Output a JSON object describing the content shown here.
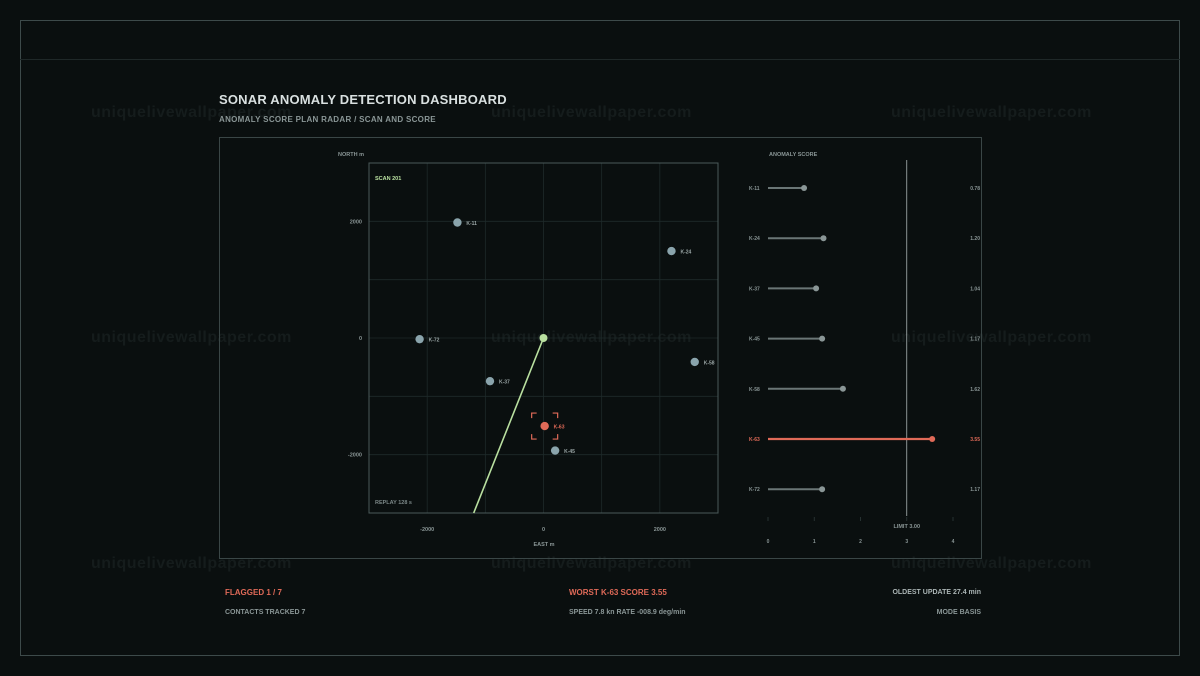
{
  "header": {
    "title": "SONAR ANOMALY DETECTION DASHBOARD",
    "subtitle": "ANOMALY SCORE PLAN RADAR / SCAN AND SCORE"
  },
  "watermark": "uniquelivewallpaper.com",
  "radar": {
    "ylabel": "NORTH m",
    "xlabel": "EAST m",
    "scan_label": "SCAN 201",
    "replay_label": "REPLAY 128 s",
    "x_ticks": [
      "-2000",
      "0",
      "2000"
    ],
    "y_ticks": [
      "2000",
      "0",
      "-2000"
    ],
    "xlim": [
      -3000,
      3000
    ],
    "ylim": [
      -3000,
      3000
    ],
    "heading_line": {
      "from": [
        0,
        0
      ],
      "to": [
        -1200,
        -3000
      ]
    },
    "contacts": [
      {
        "id": "K-11",
        "x": -1480,
        "y": 1980,
        "flagged": false
      },
      {
        "id": "K-24",
        "x": 2200,
        "y": 1490,
        "flagged": false
      },
      {
        "id": "K-72",
        "x": -2130,
        "y": -20,
        "flagged": false
      },
      {
        "id": "K-37",
        "x": -920,
        "y": -740,
        "flagged": false
      },
      {
        "id": "K-58",
        "x": 2600,
        "y": -410,
        "flagged": false
      },
      {
        "id": "K-63",
        "x": 20,
        "y": -1510,
        "flagged": true
      },
      {
        "id": "K-45",
        "x": 200,
        "y": -1930,
        "flagged": false
      }
    ]
  },
  "score_chart": {
    "title": "ANOMALY SCORE",
    "limit": 3.0,
    "limit_label": "LIMIT 3.00",
    "x_ticks": [
      "0",
      "1",
      "2",
      "3",
      "4"
    ],
    "xlim": [
      0,
      4
    ],
    "rows": [
      {
        "id": "K-11",
        "score": 0.78,
        "label": "0.78",
        "flagged": false
      },
      {
        "id": "K-24",
        "score": 1.2,
        "label": "1.20",
        "flagged": false
      },
      {
        "id": "K-37",
        "score": 1.04,
        "label": "1.04",
        "flagged": false
      },
      {
        "id": "K-45",
        "score": 1.17,
        "label": "1.17",
        "flagged": false
      },
      {
        "id": "K-58",
        "score": 1.62,
        "label": "1.62",
        "flagged": false
      },
      {
        "id": "K-63",
        "score": 3.55,
        "label": "3.55",
        "flagged": true
      },
      {
        "id": "K-72",
        "score": 1.17,
        "label": "1.17",
        "flagged": false
      }
    ]
  },
  "footer": {
    "flagged": "FLAGGED 1 / 7",
    "contacts": "CONTACTS TRACKED 7",
    "worst": "WORST K-63  SCORE 3.55",
    "speed": "SPEED  7.8 kn  RATE -008.9 deg/min",
    "oldest": "OLDEST UPDATE 27.4 min",
    "mode": "MODE BASIS"
  },
  "colors": {
    "accent_alert": "#e06a58",
    "accent_green": "#b9e0a0",
    "contact": "#8aa4ac",
    "grid": "#1e2a2a",
    "bar": "#6a7676"
  }
}
